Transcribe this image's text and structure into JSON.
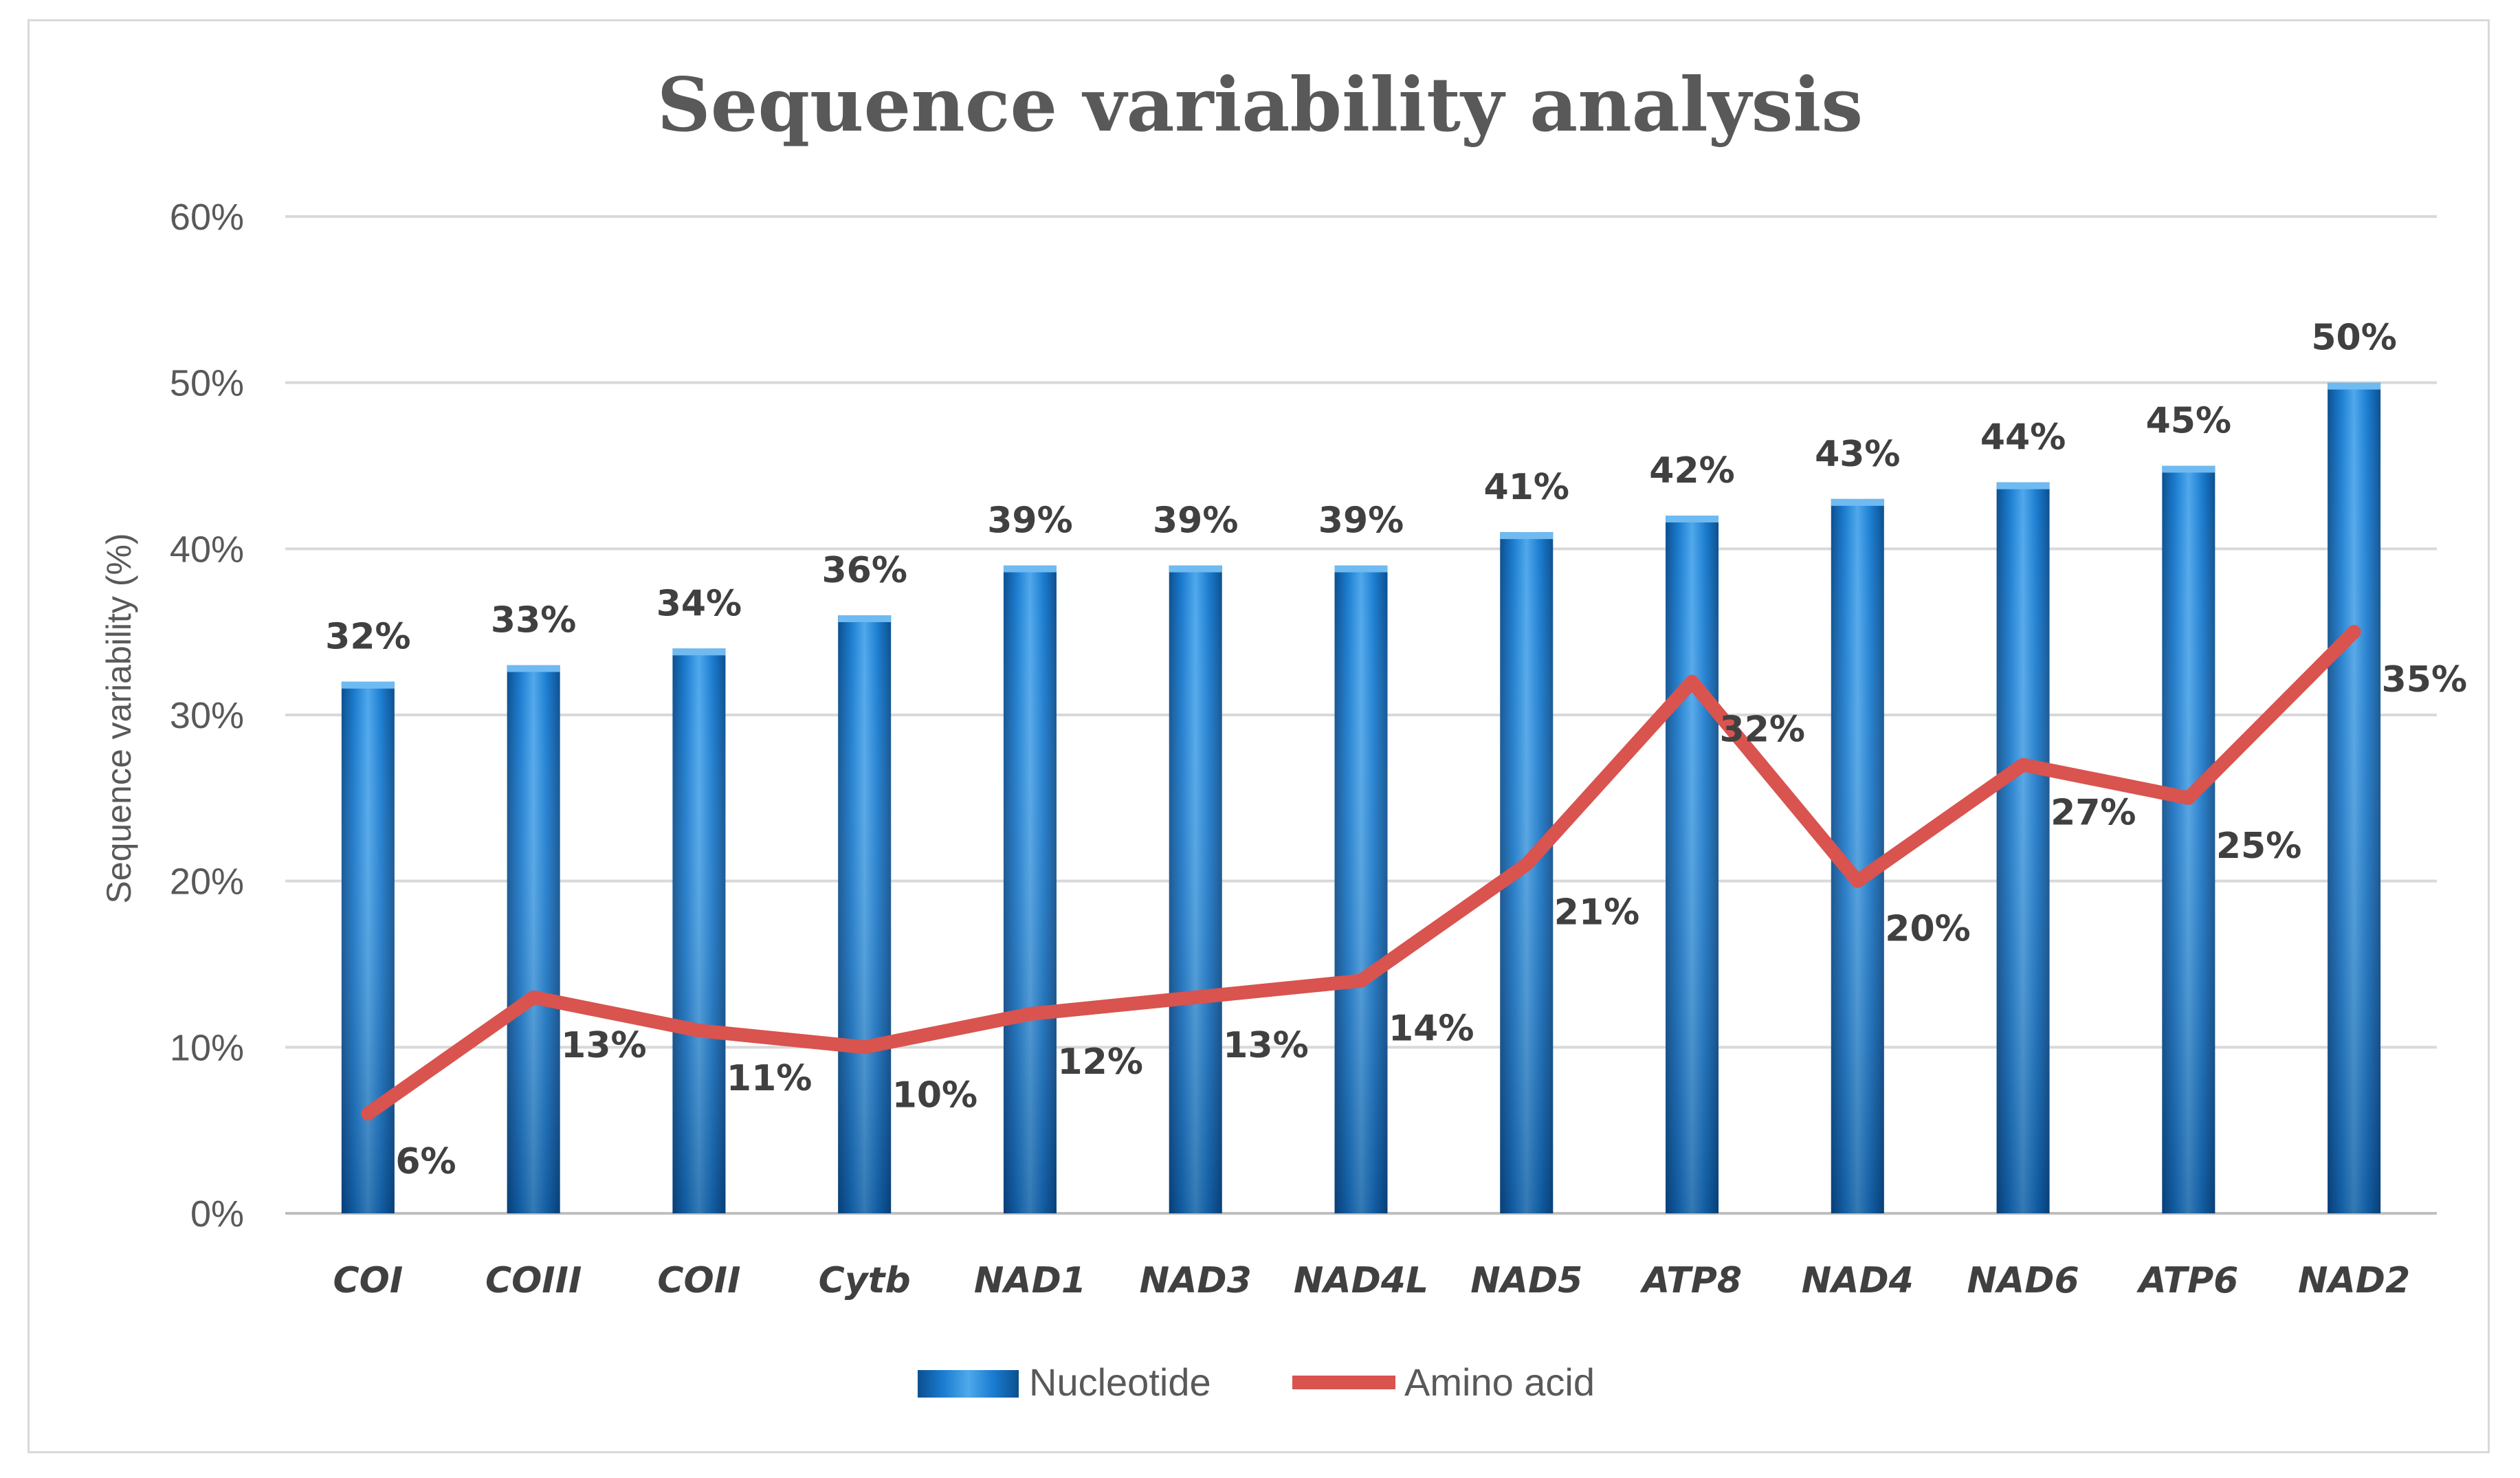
{
  "chart_data": {
    "type": "bar",
    "title": "Sequence variability analysis",
    "xlabel": "",
    "ylabel": "Sequence variability (%)",
    "ylim": [
      0,
      60
    ],
    "yticks": [
      "0%",
      "10%",
      "20%",
      "30%",
      "40%",
      "50%",
      "60%"
    ],
    "categories": [
      "COI",
      "COIII",
      "COII",
      "Cytb",
      "NAD1",
      "NAD3",
      "NAD4L",
      "NAD5",
      "ATP8",
      "NAD4",
      "NAD6",
      "ATP6",
      "NAD2"
    ],
    "series": [
      {
        "name": "Nucleotide",
        "type": "bar",
        "color": "#1f77c8",
        "values": [
          32,
          33,
          34,
          36,
          39,
          39,
          39,
          41,
          42,
          43,
          44,
          45,
          50
        ],
        "labels": [
          "32%",
          "33%",
          "34%",
          "36%",
          "39%",
          "39%",
          "39%",
          "41%",
          "42%",
          "43%",
          "44%",
          "45%",
          "50%"
        ]
      },
      {
        "name": "Amino acid",
        "type": "line",
        "color": "#d9534f",
        "values": [
          6,
          13,
          11,
          10,
          12,
          13,
          14,
          21,
          32,
          20,
          27,
          25,
          35
        ],
        "labels": [
          "6%",
          "13%",
          "11%",
          "10%",
          "12%",
          "13%",
          "14%",
          "21%",
          "32%",
          "20%",
          "27%",
          "25%",
          "35%"
        ]
      }
    ],
    "grid": true,
    "legend_position": "bottom"
  }
}
